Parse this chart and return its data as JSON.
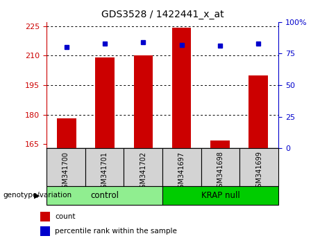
{
  "title": "GDS3528 / 1422441_x_at",
  "samples": [
    "GSM341700",
    "GSM341701",
    "GSM341702",
    "GSM341697",
    "GSM341698",
    "GSM341699"
  ],
  "counts": [
    178,
    209,
    210,
    224,
    167,
    200
  ],
  "percentiles": [
    80,
    83,
    84,
    82,
    81,
    83
  ],
  "groups": [
    {
      "label": "control",
      "indices": [
        0,
        1,
        2
      ],
      "color": "#90EE90"
    },
    {
      "label": "KRAP null",
      "indices": [
        3,
        4,
        5
      ],
      "color": "#00CC00"
    }
  ],
  "ylim_left": [
    163,
    227
  ],
  "yticks_left": [
    165,
    180,
    195,
    210,
    225
  ],
  "ylim_right": [
    0,
    100
  ],
  "yticks_right": [
    0,
    25,
    50,
    75,
    100
  ],
  "bar_color": "#CC0000",
  "dot_color": "#0000CC",
  "left_tick_color": "#CC0000",
  "right_tick_color": "#0000CC",
  "legend_items": [
    "count",
    "percentile rank within the sample"
  ],
  "legend_colors": [
    "#CC0000",
    "#0000CC"
  ],
  "group_label": "genotype/variation",
  "bar_width": 0.5,
  "bg_label_color": "#d3d3d3",
  "fig_width": 4.61,
  "fig_height": 3.54,
  "fig_dpi": 100
}
